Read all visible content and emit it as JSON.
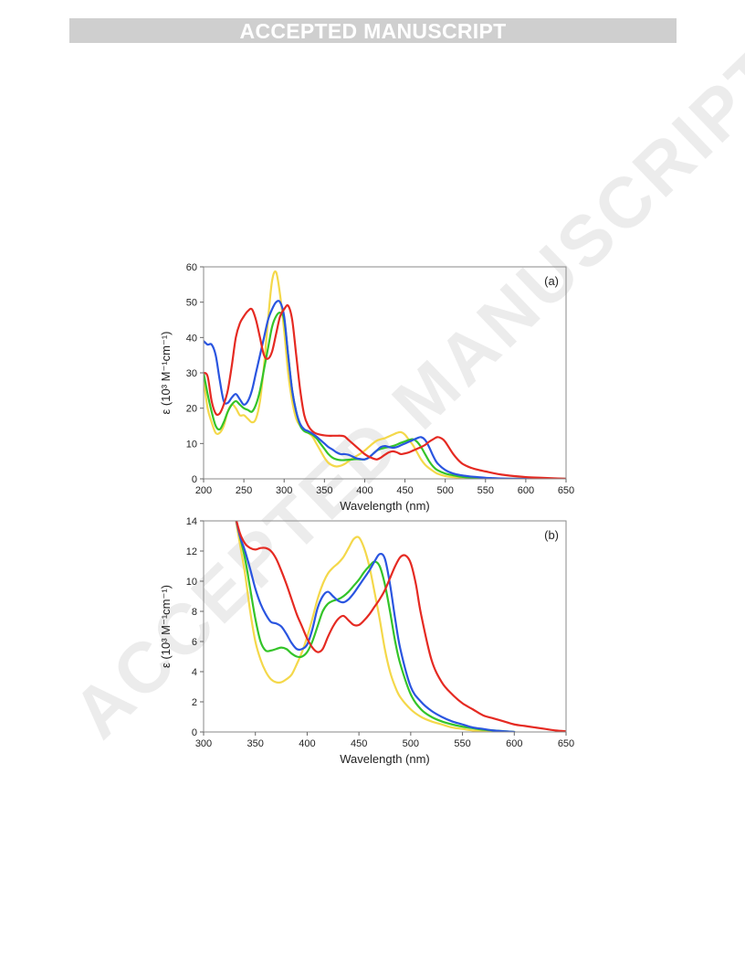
{
  "banner": {
    "text": "ACCEPTED MANUSCRIPT"
  },
  "watermark": {
    "text": "ACCEPTED MANUSCRIPT",
    "color": "#ececec"
  },
  "chart_data": [
    {
      "type": "line",
      "panel_label": "(a)",
      "xlabel": "Wavelength (nm)",
      "ylabel": "ε (10³ M⁻¹cm⁻¹)",
      "xlim": [
        200,
        650
      ],
      "ylim": [
        0,
        60
      ],
      "xticks": [
        200,
        250,
        300,
        350,
        400,
        450,
        500,
        550,
        600,
        650
      ],
      "yticks": [
        0,
        10,
        20,
        30,
        40,
        50,
        60
      ],
      "grid": false,
      "series": [
        {
          "color": "#f4d84a",
          "x": [
            200,
            205,
            210,
            215,
            220,
            225,
            230,
            235,
            240,
            245,
            250,
            255,
            260,
            265,
            270,
            275,
            280,
            285,
            290,
            295,
            300,
            305,
            310,
            315,
            320,
            325,
            330,
            335,
            340,
            345,
            350,
            355,
            360,
            365,
            370,
            375,
            380,
            385,
            390,
            395,
            400,
            405,
            410,
            415,
            420,
            425,
            430,
            435,
            440,
            445,
            450,
            455,
            460,
            465,
            470,
            475,
            480,
            485,
            490,
            500,
            510,
            520,
            530,
            540,
            550,
            560,
            570,
            580,
            600,
            620,
            650
          ],
          "y": [
            28,
            20,
            16,
            13,
            13,
            15,
            19,
            21,
            20,
            18,
            18,
            17,
            16,
            17,
            22,
            32,
            45,
            56,
            58.5,
            52,
            42,
            30,
            22,
            17,
            15,
            14,
            13,
            12,
            10,
            8,
            6,
            4.5,
            3.8,
            3.5,
            3.7,
            4.2,
            5,
            5.8,
            6.5,
            7.2,
            8,
            9,
            10,
            10.8,
            11.2,
            11.5,
            12,
            12.5,
            13,
            13.2,
            12.5,
            11,
            9.5,
            7.5,
            5.5,
            4,
            3,
            2.2,
            1.5,
            0.8,
            0.5,
            0.3,
            0.2,
            0.1,
            0.05,
            0,
            0,
            0,
            0,
            0,
            0
          ]
        },
        {
          "color": "#34c429",
          "x": [
            200,
            205,
            210,
            215,
            220,
            225,
            230,
            235,
            240,
            245,
            250,
            255,
            260,
            265,
            270,
            275,
            280,
            285,
            290,
            295,
            300,
            305,
            310,
            315,
            320,
            325,
            330,
            335,
            340,
            345,
            350,
            355,
            360,
            365,
            370,
            375,
            380,
            385,
            390,
            395,
            400,
            405,
            410,
            415,
            420,
            425,
            430,
            435,
            440,
            445,
            450,
            455,
            460,
            465,
            470,
            475,
            480,
            485,
            490,
            500,
            510,
            520,
            530,
            540,
            550,
            560,
            570,
            580,
            600,
            620,
            650
          ],
          "y": [
            30,
            24,
            19,
            15,
            14,
            16,
            19,
            21,
            22,
            21,
            20,
            19.5,
            19,
            21,
            25,
            31,
            37,
            43,
            46,
            47,
            45,
            35,
            25,
            19,
            15,
            13.5,
            13,
            12.5,
            11.5,
            10,
            8.5,
            7,
            6,
            5.5,
            5.3,
            5.3,
            5.4,
            5.5,
            5.6,
            5.5,
            5.5,
            6,
            7,
            8,
            8.5,
            8.8,
            9,
            9.3,
            9.7,
            10.2,
            10.6,
            11,
            11.2,
            10.5,
            9,
            7,
            5,
            3.5,
            2.5,
            1.5,
            1,
            0.6,
            0.4,
            0.3,
            0.2,
            0.1,
            0.05,
            0,
            0,
            0,
            0
          ]
        },
        {
          "color": "#2a55e0",
          "x": [
            200,
            205,
            210,
            215,
            220,
            225,
            230,
            235,
            240,
            245,
            250,
            255,
            260,
            265,
            270,
            275,
            280,
            285,
            290,
            295,
            300,
            305,
            310,
            315,
            320,
            325,
            330,
            335,
            340,
            345,
            350,
            355,
            360,
            365,
            370,
            375,
            380,
            385,
            390,
            395,
            400,
            405,
            410,
            415,
            420,
            425,
            430,
            435,
            440,
            445,
            450,
            455,
            460,
            465,
            470,
            475,
            480,
            485,
            490,
            500,
            510,
            520,
            530,
            540,
            550,
            560,
            570,
            580,
            600,
            620,
            650
          ],
          "y": [
            39,
            38,
            38,
            35,
            28,
            22,
            21.5,
            23,
            24,
            22.5,
            21,
            22,
            25,
            30,
            35,
            40,
            45,
            48,
            50,
            50,
            46,
            35,
            25,
            19,
            15.5,
            14,
            13.5,
            12.8,
            12,
            11,
            10,
            9,
            8.3,
            7.5,
            7,
            7,
            6.8,
            6.3,
            5.8,
            5.6,
            5.5,
            6,
            7,
            8,
            9,
            9.3,
            9,
            8.8,
            9,
            9.5,
            10,
            10.5,
            11,
            11.5,
            11.8,
            11,
            9,
            6.5,
            4.5,
            2.5,
            1.5,
            1,
            0.7,
            0.5,
            0.3,
            0.2,
            0.1,
            0.05,
            0,
            0,
            0
          ]
        },
        {
          "color": "#e52a22",
          "x": [
            200,
            205,
            210,
            215,
            220,
            225,
            230,
            235,
            240,
            245,
            250,
            255,
            260,
            265,
            270,
            275,
            280,
            285,
            290,
            295,
            300,
            305,
            310,
            315,
            320,
            325,
            330,
            335,
            340,
            345,
            350,
            355,
            360,
            365,
            370,
            375,
            380,
            385,
            390,
            395,
            400,
            405,
            410,
            415,
            420,
            425,
            430,
            435,
            440,
            445,
            450,
            455,
            460,
            465,
            470,
            475,
            480,
            485,
            490,
            495,
            500,
            510,
            520,
            530,
            540,
            550,
            560,
            570,
            580,
            600,
            620,
            650
          ],
          "y": [
            30,
            29,
            22,
            18.5,
            18.5,
            21,
            25,
            32,
            40,
            44,
            46,
            47.5,
            48,
            45,
            40,
            35,
            34,
            36,
            41,
            46,
            48,
            49,
            45,
            35,
            25,
            18,
            15,
            13.5,
            12.8,
            12.5,
            12.3,
            12.2,
            12.2,
            12.2,
            12.2,
            12,
            11,
            10,
            9,
            8,
            7,
            6.3,
            5.8,
            5.5,
            6,
            6.8,
            7.5,
            7.8,
            7.5,
            7,
            7.2,
            7.5,
            8,
            8.5,
            9,
            9.6,
            10.5,
            11.2,
            11.8,
            11.5,
            10.5,
            7,
            4.5,
            3.3,
            2.6,
            2.1,
            1.6,
            1.2,
            0.9,
            0.5,
            0.3,
            0
          ]
        }
      ]
    },
    {
      "type": "line",
      "panel_label": "(b)",
      "xlabel": "Wavelength (nm)",
      "ylabel": "ε (10³ M⁻¹cm⁻¹)",
      "xlim": [
        300,
        650
      ],
      "ylim": [
        0,
        14
      ],
      "xticks": [
        300,
        350,
        400,
        450,
        500,
        550,
        600,
        650
      ],
      "yticks": [
        0,
        2,
        4,
        6,
        8,
        10,
        12,
        14
      ],
      "grid": false,
      "series": [
        {
          "color": "#f4d84a",
          "x": [
            330,
            335,
            340,
            345,
            350,
            355,
            360,
            365,
            370,
            375,
            380,
            385,
            390,
            395,
            400,
            405,
            410,
            415,
            420,
            425,
            430,
            435,
            440,
            445,
            450,
            455,
            460,
            465,
            470,
            475,
            480,
            485,
            490,
            500,
            510,
            520,
            530,
            540,
            550,
            560,
            570,
            580,
            590,
            600
          ],
          "y": [
            14.5,
            12.5,
            10.5,
            8,
            6,
            4.8,
            4,
            3.5,
            3.3,
            3.3,
            3.5,
            3.8,
            4.5,
            5.3,
            6.3,
            7.5,
            8.8,
            9.8,
            10.5,
            10.9,
            11.2,
            11.6,
            12.2,
            12.8,
            12.9,
            12.2,
            11,
            9.3,
            7.5,
            5.5,
            4,
            3,
            2.3,
            1.5,
            1,
            0.7,
            0.5,
            0.3,
            0.2,
            0.1,
            0.05,
            0.02,
            0,
            0
          ]
        },
        {
          "color": "#34c429",
          "x": [
            330,
            335,
            340,
            345,
            350,
            355,
            360,
            365,
            370,
            375,
            380,
            385,
            390,
            395,
            400,
            405,
            410,
            415,
            420,
            425,
            430,
            435,
            440,
            445,
            450,
            455,
            460,
            465,
            470,
            475,
            480,
            485,
            490,
            500,
            510,
            520,
            530,
            540,
            550,
            560,
            570,
            580,
            590,
            600
          ],
          "y": [
            14.5,
            13,
            11.5,
            9.5,
            7.5,
            6,
            5.4,
            5.4,
            5.5,
            5.6,
            5.5,
            5.2,
            5,
            5,
            5.3,
            6,
            7,
            8,
            8.5,
            8.7,
            8.8,
            9,
            9.3,
            9.7,
            10.1,
            10.6,
            11,
            11.3,
            11,
            9.8,
            8,
            6,
            4.5,
            2.5,
            1.5,
            1,
            0.7,
            0.5,
            0.35,
            0.25,
            0.15,
            0.1,
            0.05,
            0
          ]
        },
        {
          "color": "#2a55e0",
          "x": [
            330,
            335,
            340,
            345,
            350,
            355,
            360,
            365,
            370,
            375,
            380,
            385,
            390,
            395,
            400,
            405,
            410,
            415,
            420,
            425,
            430,
            435,
            440,
            445,
            450,
            455,
            460,
            465,
            470,
            475,
            480,
            485,
            490,
            500,
            510,
            520,
            530,
            540,
            550,
            560,
            570,
            580,
            590,
            600
          ],
          "y": [
            14.5,
            13,
            12,
            10.8,
            9.5,
            8.5,
            7.8,
            7.3,
            7.2,
            7,
            6.5,
            5.9,
            5.5,
            5.5,
            5.8,
            6.8,
            8.2,
            9,
            9.3,
            9,
            8.7,
            8.6,
            8.8,
            9.2,
            9.7,
            10.2,
            10.7,
            11.3,
            11.8,
            11.5,
            9.8,
            7.5,
            5.5,
            3,
            2,
            1.4,
            1,
            0.7,
            0.5,
            0.3,
            0.2,
            0.1,
            0.05,
            0
          ]
        },
        {
          "color": "#e52a22",
          "x": [
            330,
            335,
            340,
            345,
            350,
            355,
            360,
            365,
            370,
            375,
            380,
            385,
            390,
            395,
            400,
            405,
            410,
            415,
            420,
            425,
            430,
            435,
            440,
            445,
            450,
            455,
            460,
            465,
            470,
            475,
            480,
            485,
            490,
            495,
            500,
            505,
            510,
            520,
            530,
            540,
            550,
            560,
            570,
            580,
            590,
            600,
            610,
            620,
            630,
            640,
            650
          ],
          "y": [
            14.5,
            13.2,
            12.5,
            12.2,
            12.1,
            12.2,
            12.2,
            12,
            11.5,
            10.7,
            9.8,
            8.8,
            7.8,
            7,
            6.2,
            5.6,
            5.3,
            5.5,
            6.3,
            7,
            7.5,
            7.7,
            7.4,
            7.1,
            7.1,
            7.4,
            7.8,
            8.3,
            8.8,
            9.4,
            10.2,
            11,
            11.6,
            11.7,
            11.2,
            9.8,
            7.8,
            4.8,
            3.3,
            2.5,
            1.9,
            1.5,
            1.1,
            0.9,
            0.7,
            0.5,
            0.4,
            0.3,
            0.2,
            0.1,
            0.05
          ]
        }
      ]
    }
  ]
}
